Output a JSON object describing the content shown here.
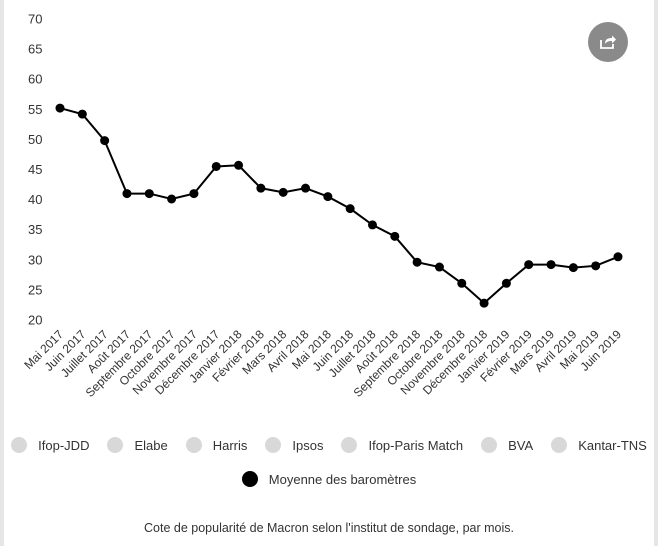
{
  "share": {
    "icon": "share-icon"
  },
  "legend": {
    "row1": [
      {
        "label": "Ifop-JDD",
        "color": "#d8d8d8"
      },
      {
        "label": "Elabe",
        "color": "#d8d8d8"
      },
      {
        "label": "Harris",
        "color": "#d8d8d8"
      },
      {
        "label": "Ipsos",
        "color": "#d8d8d8"
      },
      {
        "label": "Ifop-Paris Match",
        "color": "#d8d8d8"
      },
      {
        "label": "BVA",
        "color": "#d8d8d8"
      },
      {
        "label": "Kantar-TNS",
        "color": "#d8d8d8"
      }
    ],
    "row2": [
      {
        "label": "Moyenne des baromètres",
        "color": "#000000"
      }
    ]
  },
  "caption": "Cote de popularité de Macron selon l'institut de sondage, par mois.",
  "chart_data": {
    "type": "line",
    "title": "",
    "xlabel": "",
    "ylabel": "",
    "ylim": [
      20,
      70
    ],
    "yticks": [
      20,
      25,
      30,
      35,
      40,
      45,
      50,
      55,
      60,
      65,
      70
    ],
    "grid": false,
    "legend_placement": "bottom",
    "categories": [
      "Mai 2017",
      "Juin 2017",
      "Juillet 2017",
      "Août 2017",
      "Septembre 2017",
      "Octobre 2017",
      "Novembre 2017",
      "Décembre 2017",
      "Janvier 2018",
      "Février 2018",
      "Mars 2018",
      "Avril 2018",
      "Mai 2018",
      "Juin 2018",
      "Juillet 2018",
      "Août 2018",
      "Septembre 2018",
      "Octobre 2018",
      "Novembre 2018",
      "Décembre 2018",
      "Janvier 2019",
      "Février 2019",
      "Mars 2019",
      "Avril 2019",
      "Mai 2019",
      "Juin 2019"
    ],
    "series": [
      {
        "name": "Moyenne des baromètres",
        "color": "#000000",
        "values": [
          55.2,
          54.2,
          49.8,
          41.0,
          41.0,
          40.1,
          41.0,
          45.5,
          45.7,
          41.9,
          41.2,
          41.9,
          40.5,
          38.5,
          35.8,
          33.9,
          29.6,
          28.8,
          26.1,
          22.8,
          26.1,
          29.2,
          29.2,
          28.7,
          29.0,
          30.5
        ]
      }
    ]
  }
}
